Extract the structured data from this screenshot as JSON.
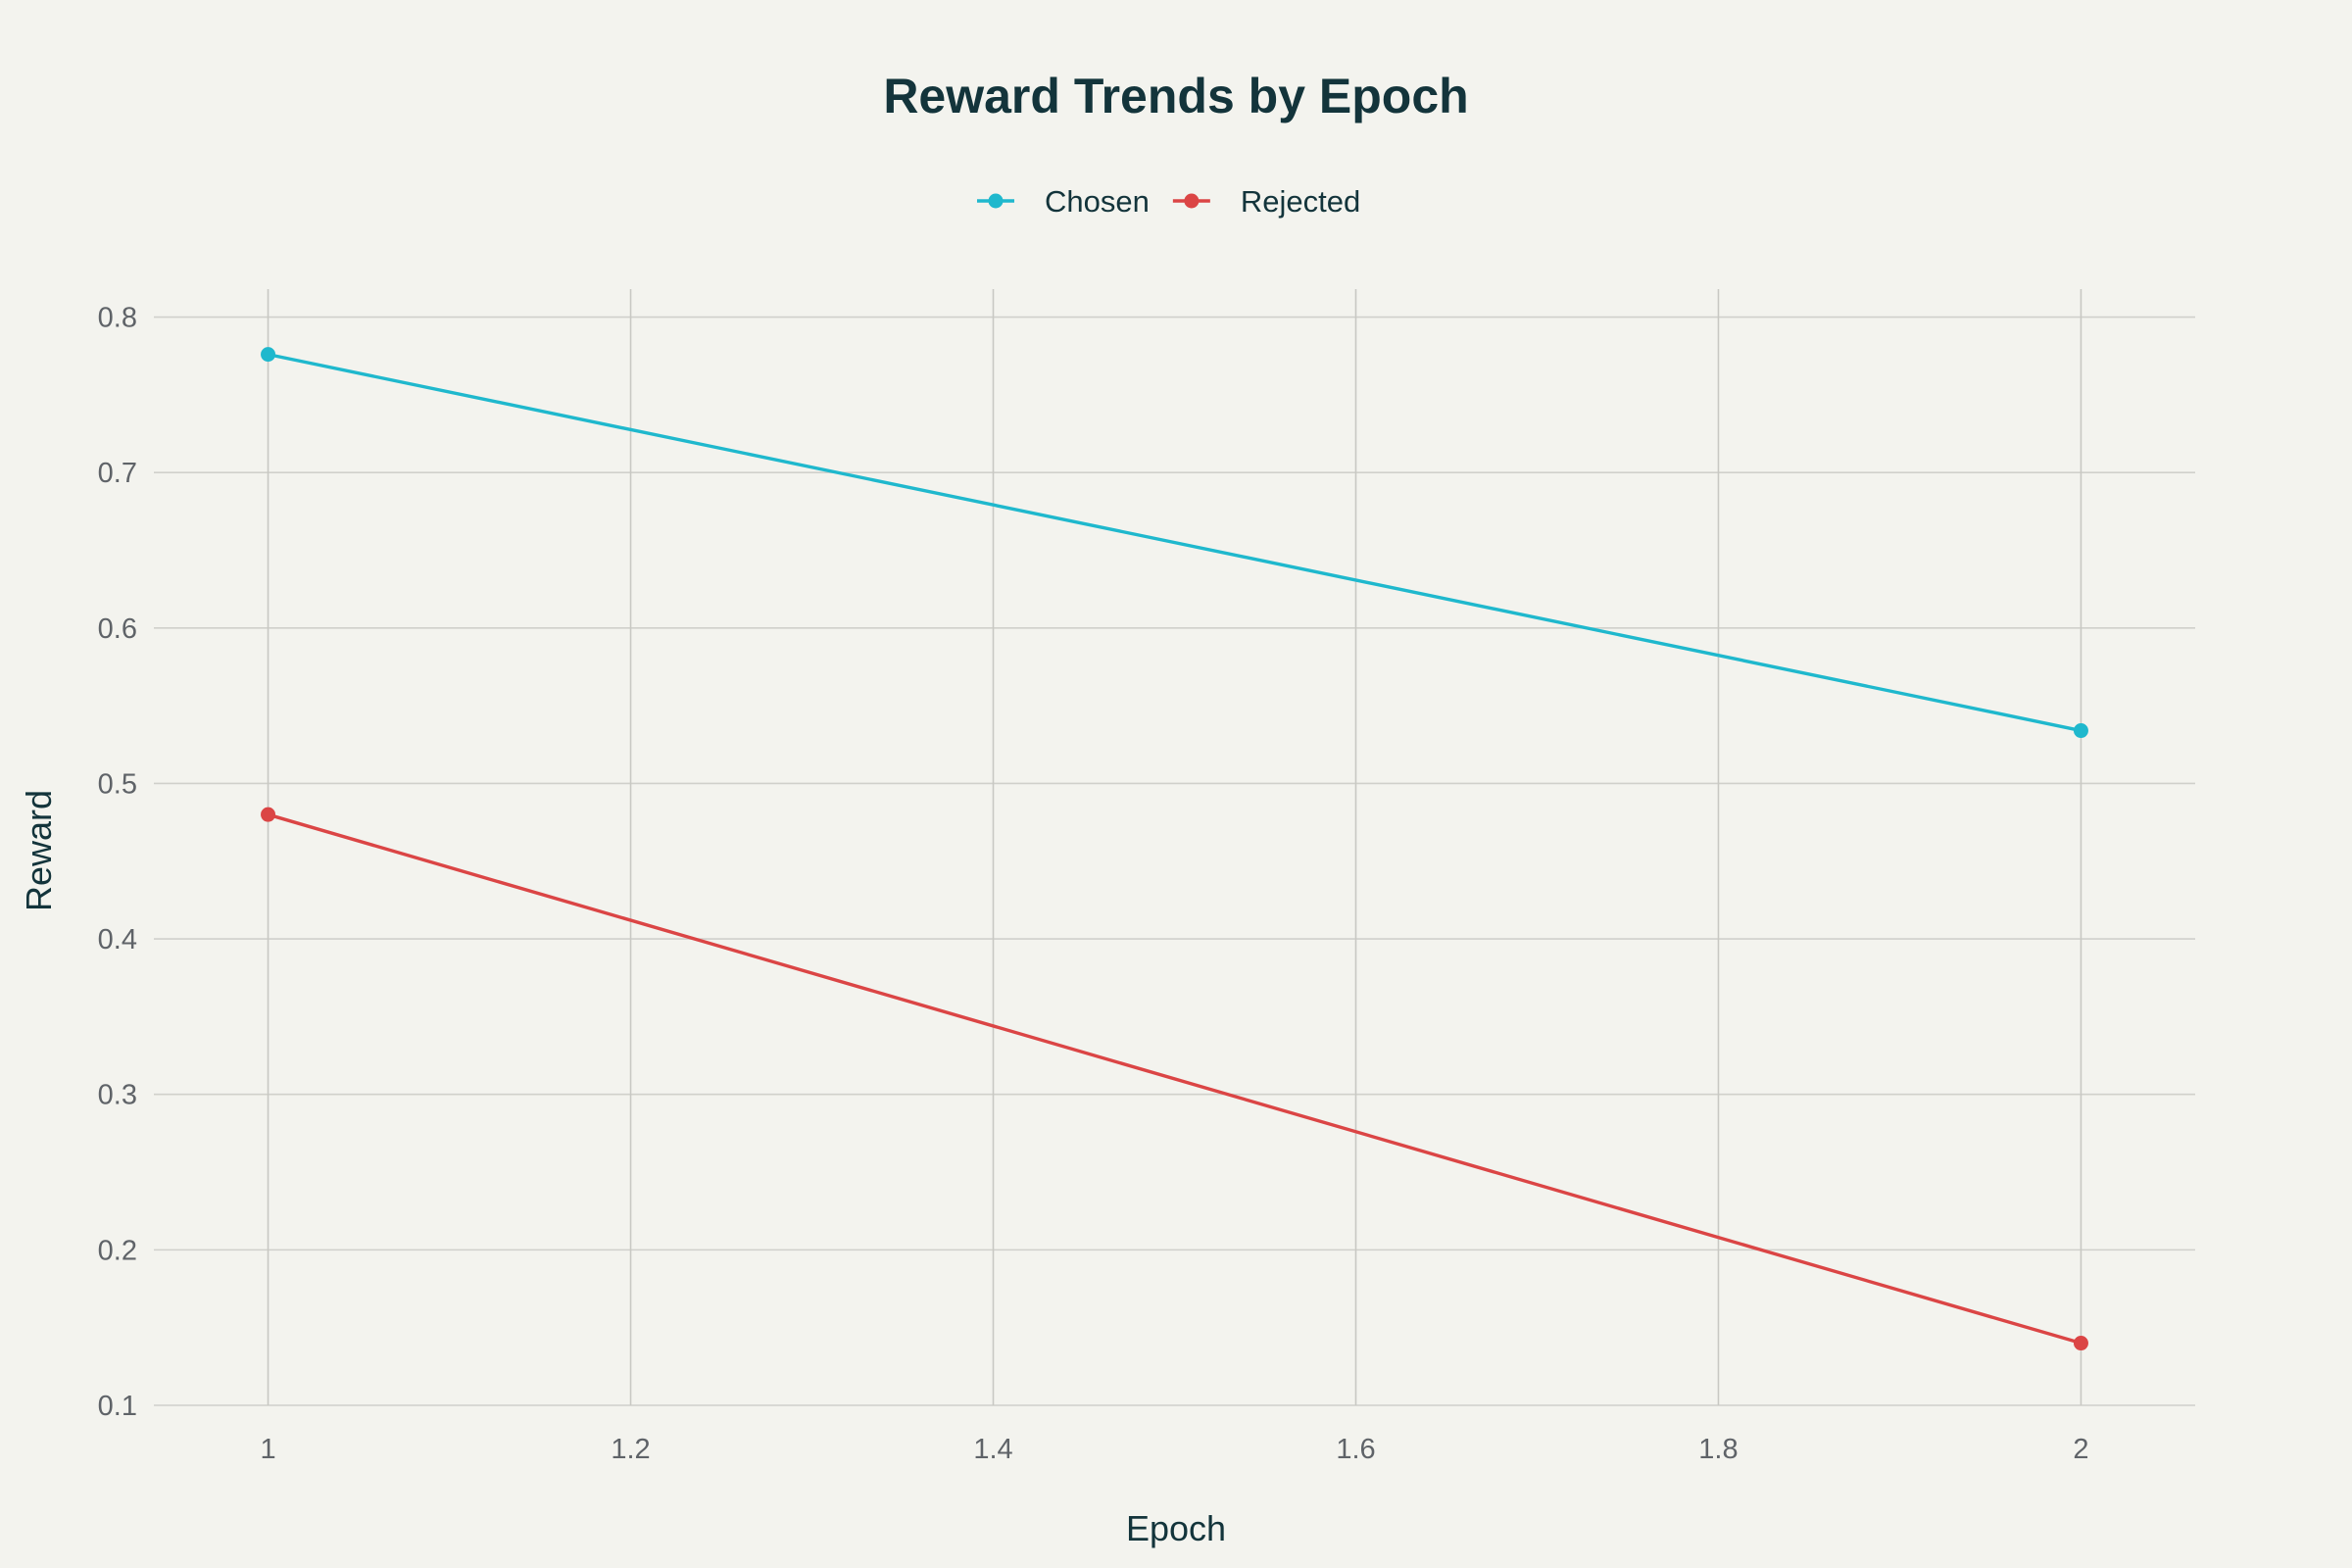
{
  "chart_data": {
    "type": "line",
    "title": "Reward Trends by Epoch",
    "xlabel": "Epoch",
    "ylabel": "Reward",
    "x": [
      1,
      2
    ],
    "xlim": [
      0.937,
      2.063
    ],
    "ylim": [
      0.1,
      0.818
    ],
    "x_ticks": [
      1,
      1.2,
      1.4,
      1.6,
      1.8,
      2
    ],
    "x_tick_labels": [
      "1",
      "1.2",
      "1.4",
      "1.6",
      "1.8",
      "2"
    ],
    "y_ticks": [
      0.1,
      0.2,
      0.3,
      0.4,
      0.5,
      0.6,
      0.7,
      0.8
    ],
    "y_tick_labels": [
      "0.1",
      "0.2",
      "0.3",
      "0.4",
      "0.5",
      "0.6",
      "0.7",
      "0.8"
    ],
    "grid": true,
    "legend_position": "top-center",
    "series": [
      {
        "name": "Chosen",
        "values": [
          0.776,
          0.534
        ],
        "color": "#1fb8cd",
        "marker": "circle"
      },
      {
        "name": "Rejected",
        "values": [
          0.48,
          0.14
        ],
        "color": "#db4545",
        "marker": "circle"
      }
    ]
  }
}
